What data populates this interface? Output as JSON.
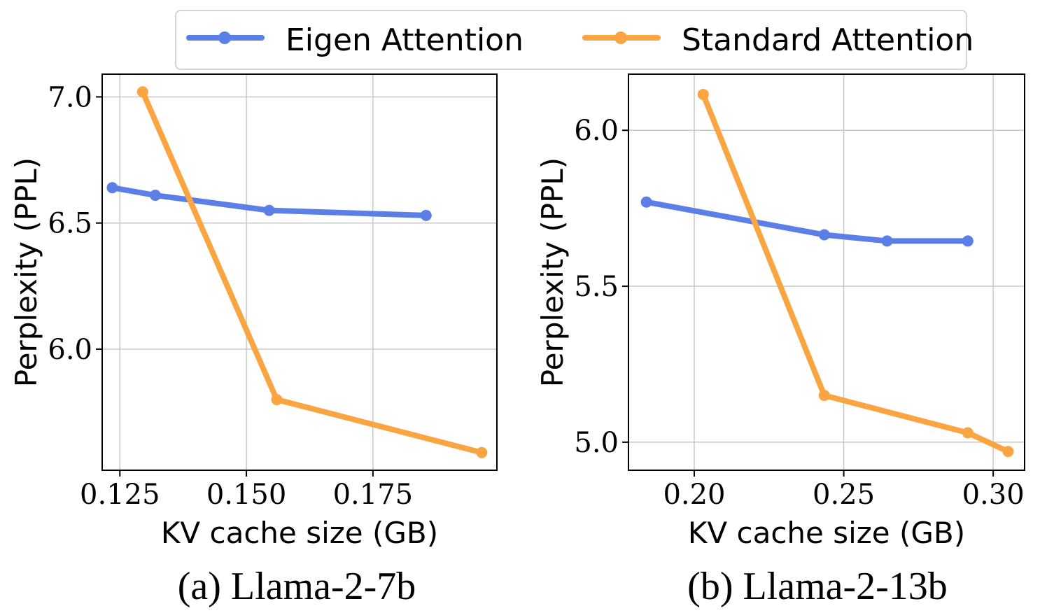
{
  "legend": {
    "items": [
      {
        "label": "Eigen Attention",
        "color": "#5b7fe6"
      },
      {
        "label": "Standard Attention",
        "color": "#f9a541"
      }
    ]
  },
  "chart_data": [
    {
      "type": "line",
      "caption": "(a) Llama-2-7b",
      "xlabel": "KV cache size (GB)",
      "ylabel": "Perplexity (PPL)",
      "xlim": [
        0.1215,
        0.1995
      ],
      "ylim": [
        5.52,
        7.09
      ],
      "xticks": [
        0.125,
        0.15,
        0.175
      ],
      "xtick_labels": [
        "0.125",
        "0.150",
        "0.175"
      ],
      "yticks": [
        6.0,
        6.5,
        7.0
      ],
      "ytick_labels": [
        "6.0",
        "6.5",
        "7.0"
      ],
      "grid": true,
      "series": [
        {
          "name": "Eigen Attention",
          "color": "#5b7fe6",
          "points": [
            [
              0.1235,
              6.64
            ],
            [
              0.132,
              6.61
            ],
            [
              0.1545,
              6.55
            ],
            [
              0.1855,
              6.53
            ]
          ]
        },
        {
          "name": "Standard Attention",
          "color": "#f9a541",
          "points": [
            [
              0.1295,
              7.02
            ],
            [
              0.156,
              5.8
            ],
            [
              0.1965,
              5.59
            ]
          ]
        }
      ]
    },
    {
      "type": "line",
      "caption": "(b) Llama-2-13b",
      "xlabel": "KV cache size (GB)",
      "ylabel": "Perplexity (PPL)",
      "xlim": [
        0.178,
        0.3105
      ],
      "ylim": [
        4.91,
        6.18
      ],
      "xticks": [
        0.2,
        0.25,
        0.3
      ],
      "xtick_labels": [
        "0.20",
        "0.25",
        "0.30"
      ],
      "yticks": [
        5.0,
        5.5,
        6.0
      ],
      "ytick_labels": [
        "5.0",
        "5.5",
        "6.0"
      ],
      "grid": true,
      "series": [
        {
          "name": "Eigen Attention",
          "color": "#5b7fe6",
          "points": [
            [
              0.184,
              5.77
            ],
            [
              0.2435,
              5.665
            ],
            [
              0.2645,
              5.645
            ],
            [
              0.2915,
              5.645
            ]
          ]
        },
        {
          "name": "Standard Attention",
          "color": "#f9a541",
          "points": [
            [
              0.203,
              6.115
            ],
            [
              0.2435,
              5.15
            ],
            [
              0.2915,
              5.03
            ],
            [
              0.305,
              4.97
            ]
          ]
        }
      ]
    }
  ]
}
